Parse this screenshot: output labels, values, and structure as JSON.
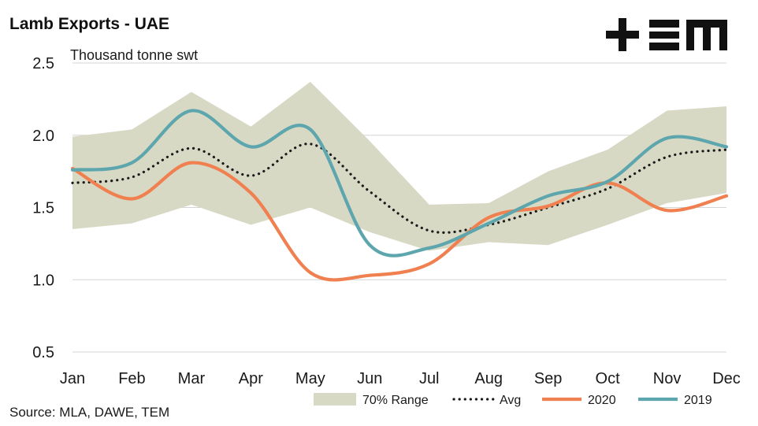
{
  "source_note": "Source: MLA, DAWE, TEM",
  "logo": {
    "text": "TEM",
    "icon": "plus-icon"
  },
  "chart_data": {
    "type": "line",
    "title": "Lamb Exports - UAE",
    "subtitle": "Thousand tonne swt",
    "xlabel": "",
    "ylabel": "",
    "categories": [
      "Jan",
      "Feb",
      "Mar",
      "Apr",
      "May",
      "Jun",
      "Jul",
      "Aug",
      "Sep",
      "Oct",
      "Nov",
      "Dec"
    ],
    "ylim": [
      0.5,
      2.5
    ],
    "yticks": [
      0.5,
      1.0,
      1.5,
      2.0,
      2.5
    ],
    "ytick_labels": [
      "0.5",
      "1.0",
      "1.5",
      "2.0",
      "2.5"
    ],
    "grid": "horizontal",
    "legend_position": "bottom",
    "range_band": {
      "name": "70% Range",
      "color": "#d8d9c4",
      "upper": [
        1.99,
        2.04,
        2.3,
        2.06,
        2.37,
        1.96,
        1.52,
        1.53,
        1.75,
        1.9,
        2.17,
        2.2
      ],
      "lower": [
        1.35,
        1.39,
        1.52,
        1.38,
        1.5,
        1.33,
        1.2,
        1.26,
        1.24,
        1.38,
        1.53,
        1.6
      ]
    },
    "series": [
      {
        "name": "Avg",
        "color": "#1a1a1a",
        "style": "dotted",
        "values": [
          1.67,
          1.71,
          1.91,
          1.72,
          1.94,
          1.61,
          1.34,
          1.38,
          1.5,
          1.63,
          1.85,
          1.9
        ]
      },
      {
        "name": "2020",
        "color": "#f08050",
        "style": "solid",
        "values": [
          1.77,
          1.56,
          1.81,
          1.6,
          1.05,
          1.03,
          1.11,
          1.43,
          1.51,
          1.67,
          1.48,
          1.58
        ]
      },
      {
        "name": "2019",
        "color": "#5ea6ae",
        "style": "solid",
        "values": [
          1.76,
          1.81,
          2.17,
          1.92,
          2.04,
          1.24,
          1.22,
          1.39,
          1.58,
          1.68,
          1.98,
          1.92
        ]
      }
    ]
  }
}
